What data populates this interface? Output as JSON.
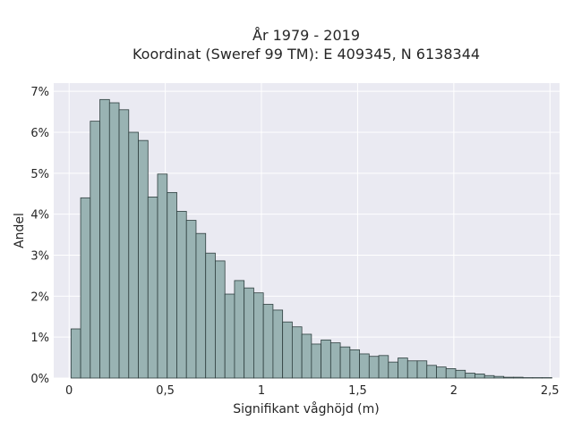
{
  "chart_data": {
    "type": "bar",
    "title_lines": [
      "År 1979 - 2019",
      "Koordinat (Sweref 99 TM): E 409345, N 6138344"
    ],
    "xlabel": "Signifikant våghöjd (m)",
    "ylabel": "Andel",
    "xlim": [
      -0.08,
      2.55
    ],
    "ylim": [
      0,
      7.2
    ],
    "x_ticks": [
      {
        "value": 0,
        "label": "0"
      },
      {
        "value": 0.5,
        "label": "0,5"
      },
      {
        "value": 1,
        "label": "1"
      },
      {
        "value": 1.5,
        "label": "1,5"
      },
      {
        "value": 2,
        "label": "2"
      },
      {
        "value": 2.5,
        "label": "2,5"
      }
    ],
    "y_ticks": [
      {
        "value": 0,
        "label": "0%"
      },
      {
        "value": 1,
        "label": "1%"
      },
      {
        "value": 2,
        "label": "2%"
      },
      {
        "value": 3,
        "label": "3%"
      },
      {
        "value": 4,
        "label": "4%"
      },
      {
        "value": 5,
        "label": "5%"
      },
      {
        "value": 6,
        "label": "6%"
      },
      {
        "value": 7,
        "label": "7%"
      }
    ],
    "grid": true,
    "bin_start": 0.01,
    "bin_width": 0.05,
    "values": [
      1.2,
      4.4,
      6.27,
      6.8,
      6.72,
      6.55,
      6.0,
      5.8,
      4.42,
      4.98,
      4.53,
      4.07,
      3.85,
      3.53,
      3.05,
      2.86,
      2.05,
      2.38,
      2.2,
      2.08,
      1.8,
      1.66,
      1.37,
      1.25,
      1.07,
      0.83,
      0.93,
      0.86,
      0.76,
      0.69,
      0.59,
      0.53,
      0.55,
      0.39,
      0.49,
      0.42,
      0.42,
      0.31,
      0.27,
      0.23,
      0.19,
      0.12,
      0.1,
      0.06,
      0.04,
      0.02,
      0.02,
      0.01,
      0.01,
      0.01
    ],
    "colors": {
      "plot_background": "#eaeaf2",
      "grid": "#ffffff",
      "bar_fill": "#99b3b3",
      "bar_edge": "#2f3f3f"
    }
  }
}
